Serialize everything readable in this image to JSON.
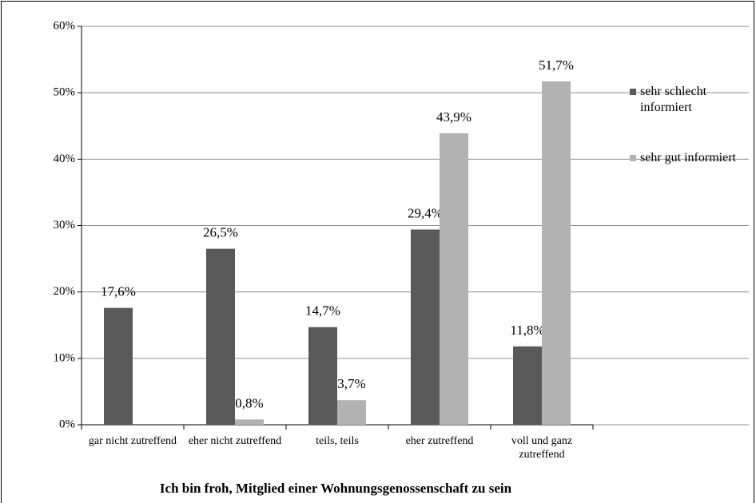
{
  "chart_data": {
    "type": "bar",
    "x_label": "Ich bin froh, Mitglied einer Wohnungsgenossenschaft zu sein",
    "categories": [
      "gar nicht zutreffend",
      "eher nicht zutreffend",
      "teils, teils",
      "eher zutreffend",
      "voll und ganz zutreffend"
    ],
    "series": [
      {
        "name": "sehr schlecht informiert",
        "color": "#595959",
        "values": [
          17.6,
          26.5,
          14.7,
          29.4,
          11.8
        ],
        "value_labels": [
          "17,6%",
          "26,5%",
          "14,7%",
          "29,4%",
          "11,8%"
        ]
      },
      {
        "name": "sehr gut informiert",
        "color": "#b2b2b2",
        "values": [
          null,
          0.8,
          3.7,
          43.9,
          51.7
        ],
        "value_labels": [
          null,
          "0,8%",
          "3,7%",
          "43,9%",
          "51,7%"
        ]
      }
    ],
    "ylim": [
      0,
      60
    ],
    "yticks": [
      {
        "value": 0,
        "label": "0%"
      },
      {
        "value": 10,
        "label": "10%"
      },
      {
        "value": 20,
        "label": "20%"
      },
      {
        "value": 30,
        "label": "30%"
      },
      {
        "value": 40,
        "label": "40%"
      },
      {
        "value": 50,
        "label": "50%"
      },
      {
        "value": 60,
        "label": "60%"
      }
    ],
    "grid": true,
    "legend": "right"
  }
}
